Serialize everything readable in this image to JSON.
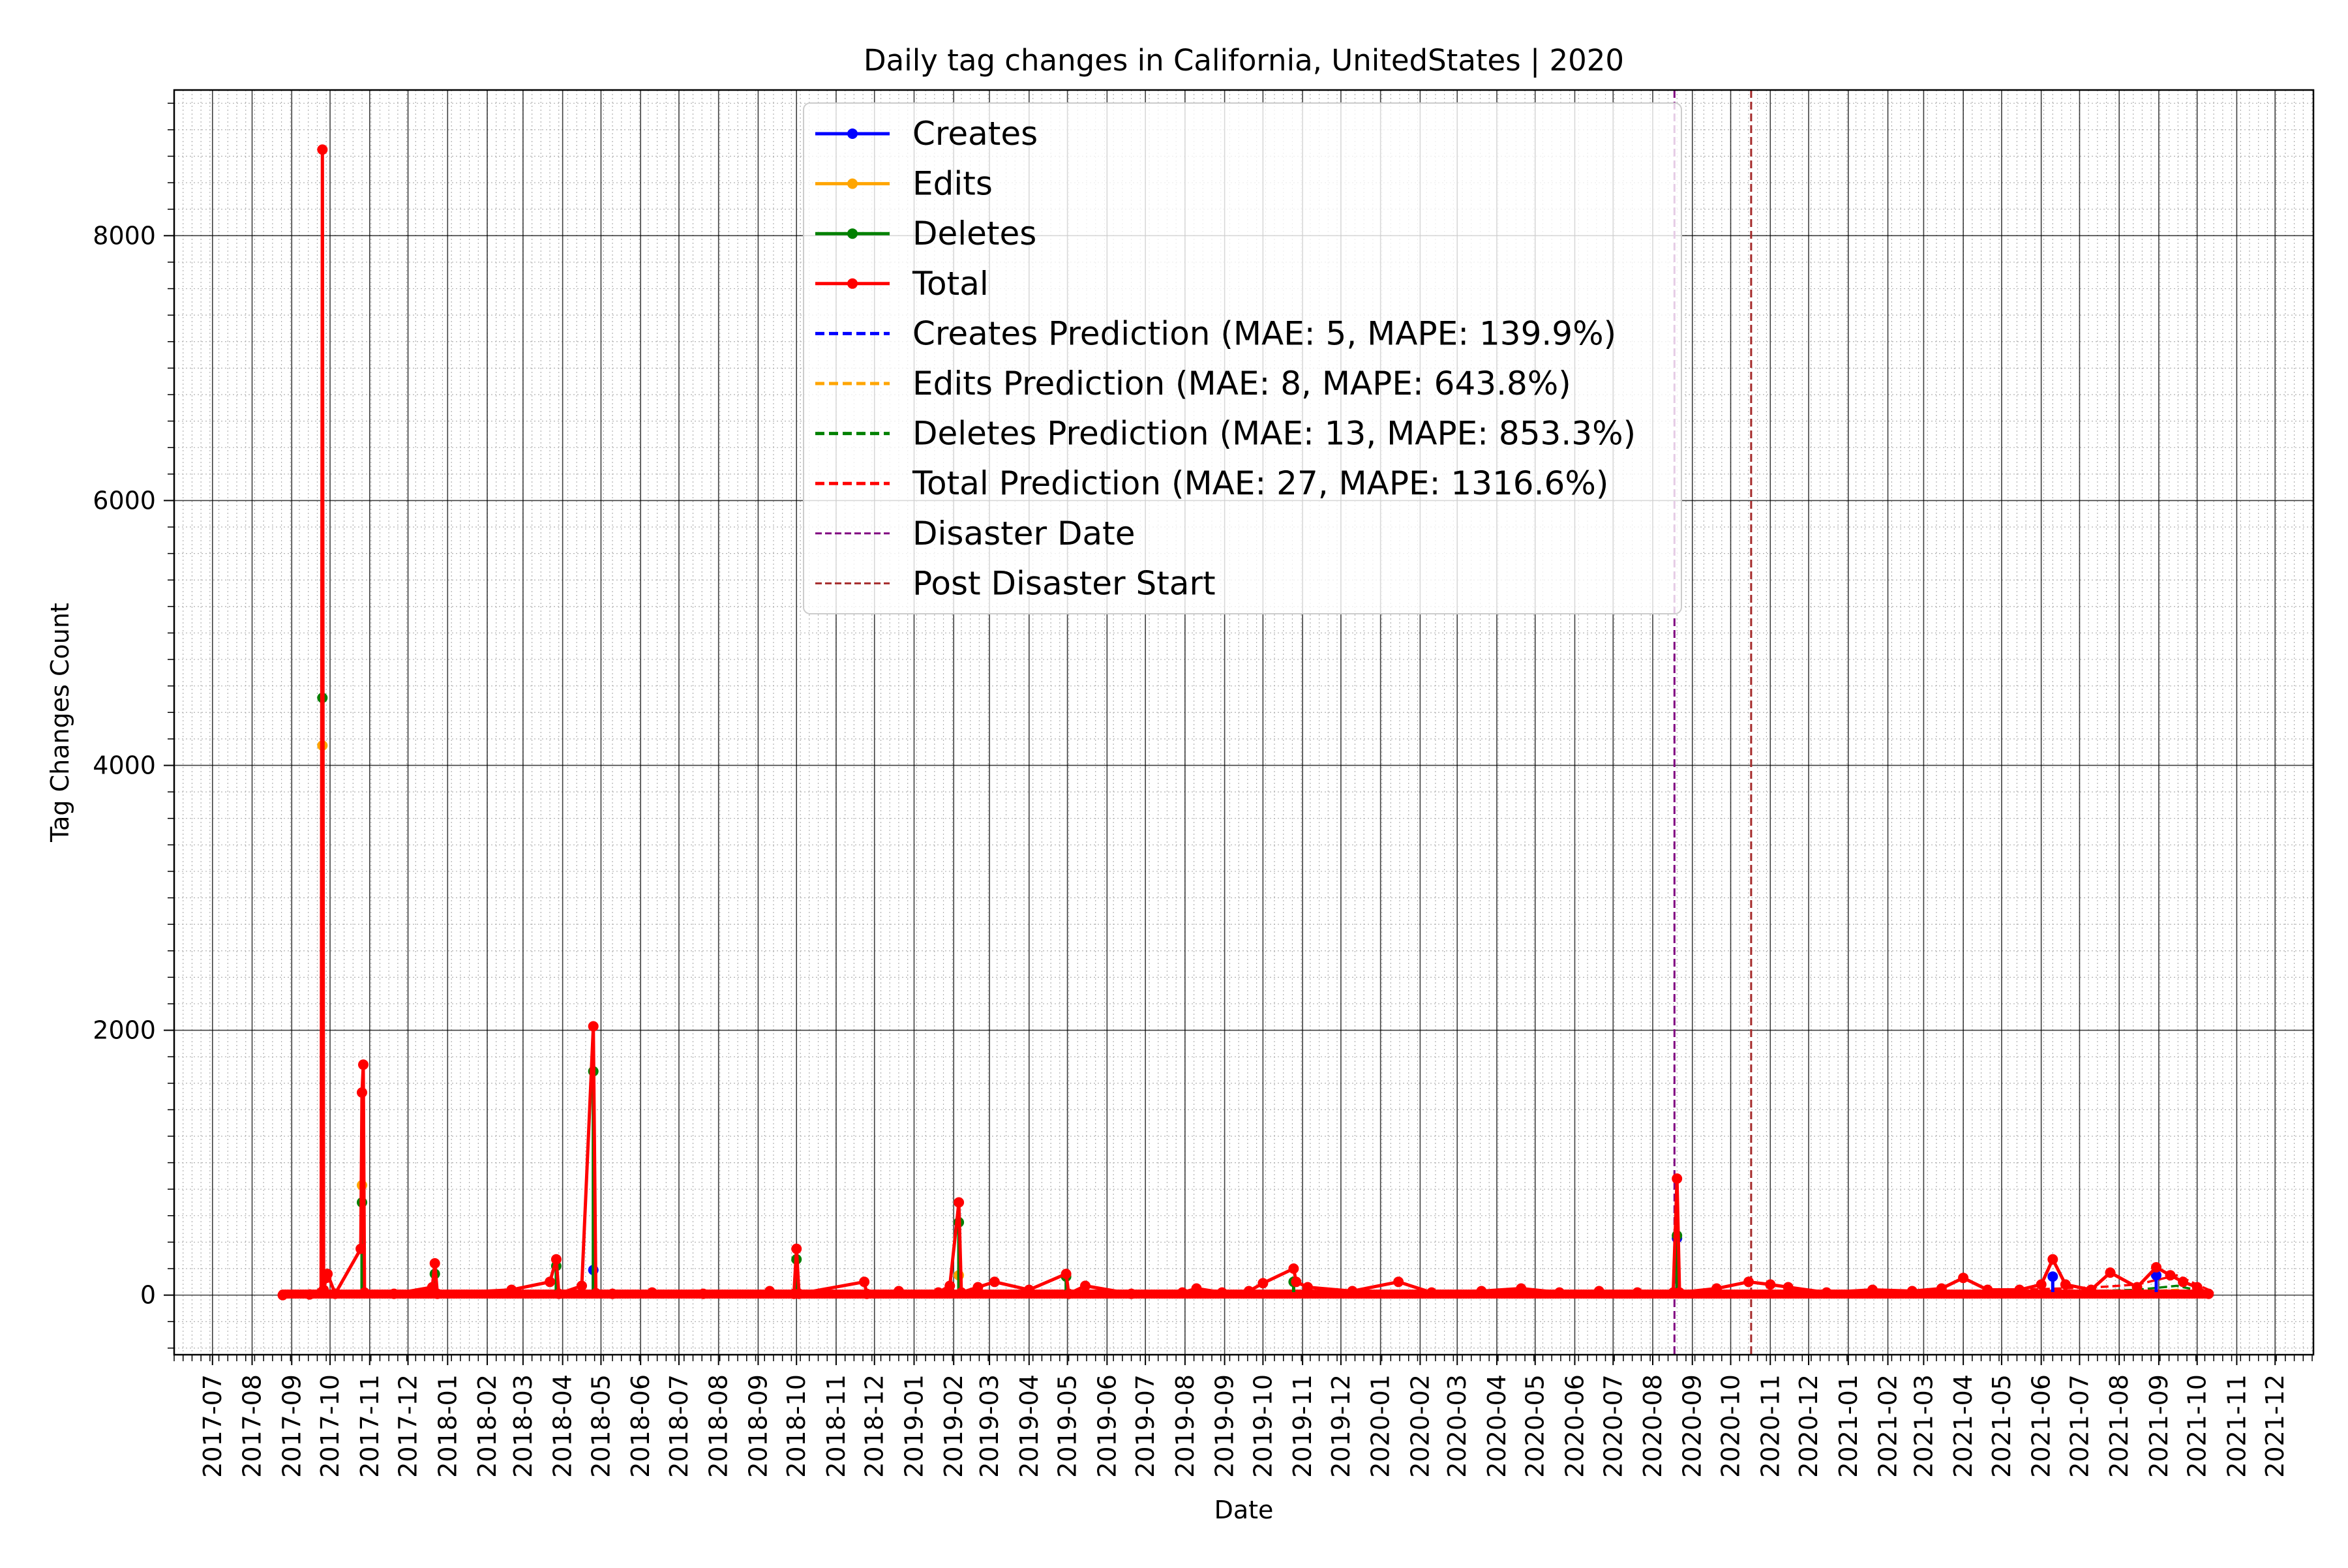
{
  "chart_data": {
    "type": "line",
    "title": "Daily tag changes in California, UnitedStates | 2020",
    "xlabel": "Date",
    "ylabel": "Tag Changes Count",
    "x_axis": {
      "type": "date",
      "range": [
        "2017-06-01",
        "2021-12-31"
      ],
      "tick_labels": [
        "2017-07",
        "2017-08",
        "2017-09",
        "2017-10",
        "2017-11",
        "2017-12",
        "2018-01",
        "2018-02",
        "2018-03",
        "2018-04",
        "2018-05",
        "2018-06",
        "2018-07",
        "2018-08",
        "2018-09",
        "2018-10",
        "2018-11",
        "2018-12",
        "2019-01",
        "2019-02",
        "2019-03",
        "2019-04",
        "2019-05",
        "2019-06",
        "2019-07",
        "2019-08",
        "2019-09",
        "2019-10",
        "2019-11",
        "2019-12",
        "2020-01",
        "2020-02",
        "2020-03",
        "2020-04",
        "2020-05",
        "2020-06",
        "2020-07",
        "2020-08",
        "2020-09",
        "2020-10",
        "2020-11",
        "2020-12",
        "2021-01",
        "2021-02",
        "2021-03",
        "2021-04",
        "2021-05",
        "2021-06",
        "2021-07",
        "2021-08",
        "2021-09",
        "2021-10",
        "2021-11",
        "2021-12"
      ]
    },
    "y_axis": {
      "range": [
        -450,
        9100
      ],
      "ticks": [
        0,
        2000,
        4000,
        6000,
        8000
      ],
      "tick_labels": [
        "0",
        "2000",
        "4000",
        "6000",
        "8000"
      ]
    },
    "grid": true,
    "legend_position": "top-center",
    "colors": {
      "creates": "#0000ff",
      "edits": "#ffa500",
      "deletes": "#008000",
      "total": "#ff0000",
      "disaster": "#800080",
      "post_disaster": "#a52a2a"
    },
    "legend": [
      {
        "label": "Creates",
        "color": "#0000ff",
        "style": "solid-marker"
      },
      {
        "label": "Edits",
        "color": "#ffa500",
        "style": "solid-marker"
      },
      {
        "label": "Deletes",
        "color": "#008000",
        "style": "solid-marker"
      },
      {
        "label": "Total",
        "color": "#ff0000",
        "style": "solid-marker"
      },
      {
        "label": "Creates Prediction (MAE: 5, MAPE: 139.9%)",
        "color": "#0000ff",
        "style": "dashed"
      },
      {
        "label": "Edits Prediction (MAE: 8, MAPE: 643.8%)",
        "color": "#ffa500",
        "style": "dashed"
      },
      {
        "label": "Deletes Prediction (MAE: 13, MAPE: 853.3%)",
        "color": "#008000",
        "style": "dashed"
      },
      {
        "label": "Total Prediction (MAE: 27, MAPE: 1316.6%)",
        "color": "#ff0000",
        "style": "dashed"
      },
      {
        "label": "Disaster Date",
        "color": "#800080",
        "style": "dashed-thin"
      },
      {
        "label": "Post Disaster Start",
        "color": "#a52a2a",
        "style": "dashed-thin"
      }
    ],
    "series": [
      {
        "name": "Total",
        "color": "#ff0000",
        "points": [
          {
            "x": "2017-08-25",
            "y": 0
          },
          {
            "x": "2017-09-15",
            "y": 5
          },
          {
            "x": "2017-09-24",
            "y": 20
          },
          {
            "x": "2017-09-25",
            "y": 8650
          },
          {
            "x": "2017-09-26",
            "y": 40
          },
          {
            "x": "2017-09-28",
            "y": 130
          },
          {
            "x": "2017-09-29",
            "y": 160
          },
          {
            "x": "2017-10-05",
            "y": 10
          },
          {
            "x": "2017-10-25",
            "y": 350
          },
          {
            "x": "2017-10-26",
            "y": 1530
          },
          {
            "x": "2017-10-27",
            "y": 1740
          },
          {
            "x": "2017-10-28",
            "y": 20
          },
          {
            "x": "2017-11-20",
            "y": 10
          },
          {
            "x": "2017-12-20",
            "y": 60
          },
          {
            "x": "2017-12-22",
            "y": 240
          },
          {
            "x": "2017-12-24",
            "y": 10
          },
          {
            "x": "2018-02-20",
            "y": 40
          },
          {
            "x": "2018-03-22",
            "y": 100
          },
          {
            "x": "2018-03-27",
            "y": 270
          },
          {
            "x": "2018-03-29",
            "y": 10
          },
          {
            "x": "2018-04-16",
            "y": 70
          },
          {
            "x": "2018-04-25",
            "y": 2030
          },
          {
            "x": "2018-04-27",
            "y": 15
          },
          {
            "x": "2018-05-10",
            "y": 10
          },
          {
            "x": "2018-06-10",
            "y": 20
          },
          {
            "x": "2018-07-20",
            "y": 10
          },
          {
            "x": "2018-09-10",
            "y": 30
          },
          {
            "x": "2018-09-29",
            "y": 10
          },
          {
            "x": "2018-10-01",
            "y": 350
          },
          {
            "x": "2018-10-03",
            "y": 10
          },
          {
            "x": "2018-11-23",
            "y": 100
          },
          {
            "x": "2018-11-25",
            "y": 10
          },
          {
            "x": "2018-12-20",
            "y": 30
          },
          {
            "x": "2019-01-20",
            "y": 20
          },
          {
            "x": "2019-01-29",
            "y": 70
          },
          {
            "x": "2019-02-05",
            "y": 700
          },
          {
            "x": "2019-02-07",
            "y": 20
          },
          {
            "x": "2019-02-20",
            "y": 60
          },
          {
            "x": "2019-03-05",
            "y": 100
          },
          {
            "x": "2019-04-01",
            "y": 40
          },
          {
            "x": "2019-04-30",
            "y": 160
          },
          {
            "x": "2019-05-02",
            "y": 10
          },
          {
            "x": "2019-05-15",
            "y": 70
          },
          {
            "x": "2019-06-20",
            "y": 10
          },
          {
            "x": "2019-07-30",
            "y": 20
          },
          {
            "x": "2019-08-10",
            "y": 50
          },
          {
            "x": "2019-08-30",
            "y": 20
          },
          {
            "x": "2019-09-20",
            "y": 30
          },
          {
            "x": "2019-10-01",
            "y": 90
          },
          {
            "x": "2019-10-25",
            "y": 200
          },
          {
            "x": "2019-10-27",
            "y": 100
          },
          {
            "x": "2019-11-05",
            "y": 60
          },
          {
            "x": "2019-12-10",
            "y": 30
          },
          {
            "x": "2020-01-15",
            "y": 100
          },
          {
            "x": "2020-02-10",
            "y": 20
          },
          {
            "x": "2020-03-20",
            "y": 30
          },
          {
            "x": "2020-04-20",
            "y": 50
          },
          {
            "x": "2020-05-20",
            "y": 20
          },
          {
            "x": "2020-06-20",
            "y": 30
          },
          {
            "x": "2020-07-20",
            "y": 20
          },
          {
            "x": "2020-08-17",
            "y": 20
          },
          {
            "x": "2020-08-20",
            "y": 880
          },
          {
            "x": "2020-08-22",
            "y": 20
          },
          {
            "x": "2020-09-20",
            "y": 50
          },
          {
            "x": "2020-10-15",
            "y": 100
          },
          {
            "x": "2020-11-01",
            "y": 80
          },
          {
            "x": "2020-11-15",
            "y": 60
          },
          {
            "x": "2020-12-15",
            "y": 20
          },
          {
            "x": "2021-01-20",
            "y": 40
          },
          {
            "x": "2021-02-20",
            "y": 30
          },
          {
            "x": "2021-03-15",
            "y": 50
          },
          {
            "x": "2021-04-01",
            "y": 130
          },
          {
            "x": "2021-04-20",
            "y": 40
          },
          {
            "x": "2021-05-15",
            "y": 40
          },
          {
            "x": "2021-06-01",
            "y": 80
          },
          {
            "x": "2021-06-10",
            "y": 270
          },
          {
            "x": "2021-06-20",
            "y": 80
          },
          {
            "x": "2021-07-10",
            "y": 40
          },
          {
            "x": "2021-07-25",
            "y": 170
          },
          {
            "x": "2021-08-15",
            "y": 60
          },
          {
            "x": "2021-08-30",
            "y": 210
          },
          {
            "x": "2021-09-10",
            "y": 150
          },
          {
            "x": "2021-09-20",
            "y": 100
          },
          {
            "x": "2021-10-01",
            "y": 60
          },
          {
            "x": "2021-10-10",
            "y": 10
          }
        ]
      },
      {
        "name": "Deletes",
        "color": "#008000",
        "points": [
          {
            "x": "2017-09-25",
            "y": 4510
          },
          {
            "x": "2017-10-26",
            "y": 700
          },
          {
            "x": "2017-12-22",
            "y": 160
          },
          {
            "x": "2018-03-27",
            "y": 220
          },
          {
            "x": "2018-04-25",
            "y": 1690
          },
          {
            "x": "2018-10-01",
            "y": 270
          },
          {
            "x": "2019-02-05",
            "y": 550
          },
          {
            "x": "2019-04-30",
            "y": 140
          },
          {
            "x": "2019-10-25",
            "y": 100
          },
          {
            "x": "2020-08-20",
            "y": 450
          }
        ]
      },
      {
        "name": "Edits",
        "color": "#ffa500",
        "points": [
          {
            "x": "2017-09-25",
            "y": 4150
          },
          {
            "x": "2017-10-26",
            "y": 830
          },
          {
            "x": "2019-02-05",
            "y": 150
          }
        ]
      },
      {
        "name": "Creates",
        "color": "#0000ff",
        "points": [
          {
            "x": "2018-04-25",
            "y": 190
          },
          {
            "x": "2020-08-20",
            "y": 430
          },
          {
            "x": "2021-06-10",
            "y": 140
          },
          {
            "x": "2021-08-30",
            "y": 150
          }
        ]
      }
    ],
    "prediction_series": [
      {
        "name": "Total Prediction",
        "color": "#ff0000",
        "x": [
          "2020-10-15",
          "2020-11-15",
          "2020-12-15",
          "2021-01-15",
          "2021-02-15",
          "2021-03-15",
          "2021-04-15",
          "2021-05-15",
          "2021-06-15",
          "2021-07-15",
          "2021-08-15",
          "2021-09-15",
          "2021-10-10"
        ],
        "y": [
          30,
          20,
          10,
          15,
          20,
          25,
          30,
          40,
          50,
          60,
          80,
          150,
          40
        ]
      },
      {
        "name": "Deletes Prediction",
        "color": "#008000",
        "x": [
          "2020-10-15",
          "2020-12-15",
          "2021-02-15",
          "2021-04-15",
          "2021-06-15",
          "2021-08-15",
          "2021-09-15",
          "2021-10-10"
        ],
        "y": [
          15,
          10,
          10,
          15,
          25,
          40,
          70,
          20
        ]
      },
      {
        "name": "Edits Prediction",
        "color": "#ffa500",
        "x": [
          "2020-10-15",
          "2020-12-15",
          "2021-02-15",
          "2021-04-15",
          "2021-06-15",
          "2021-08-15",
          "2021-09-15",
          "2021-10-10"
        ],
        "y": [
          10,
          5,
          8,
          10,
          15,
          25,
          40,
          10
        ]
      },
      {
        "name": "Creates Prediction",
        "color": "#0000ff",
        "x": [
          "2020-10-15",
          "2020-12-15",
          "2021-02-15",
          "2021-04-15",
          "2021-06-15",
          "2021-08-15",
          "2021-09-15",
          "2021-10-10"
        ],
        "y": [
          5,
          5,
          5,
          5,
          10,
          15,
          20,
          5
        ]
      }
    ],
    "vertical_lines": [
      {
        "name": "Disaster Date",
        "x": "2020-08-18",
        "color": "#800080"
      },
      {
        "name": "Post Disaster Start",
        "x": "2020-10-17",
        "color": "#a52a2a"
      }
    ]
  }
}
